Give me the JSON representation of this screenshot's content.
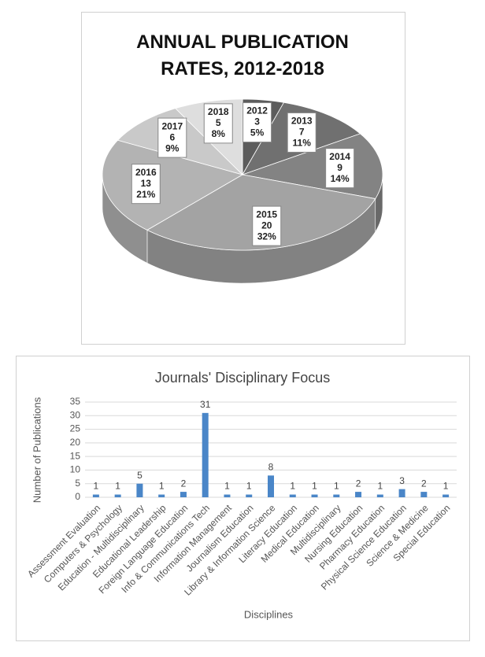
{
  "chart_data": [
    {
      "type": "pie",
      "title": "ANNUAL PUBLICATION RATES, 2012-2018",
      "categories": [
        "2012",
        "2013",
        "2014",
        "2015",
        "2016",
        "2017",
        "2018"
      ],
      "values": [
        3,
        7,
        9,
        20,
        13,
        6,
        5
      ],
      "percent_labels": [
        "5%",
        "11%",
        "14%",
        "32%",
        "21%",
        "9%",
        "8%"
      ],
      "colors": [
        "#5c5c5c",
        "#707070",
        "#838383",
        "#a3a3a3",
        "#b3b3b3",
        "#c9c9c9",
        "#dedede"
      ]
    },
    {
      "type": "bar",
      "title": "Journals' Disciplinary Focus",
      "x_label": "Disciplines",
      "y_label": "Number of Publications",
      "categories": [
        "Assessment Evaluation",
        "Computers & Psychology",
        "Education - Multidisciplinary",
        "Educational Leadership",
        "Foreign Language Education",
        "Info & Communications Tech",
        "Information Management",
        "Journalism Education",
        "Library & Information Science",
        "Literacy Education",
        "Medical Education",
        "Multidisciplinary",
        "Nursing Education",
        "Pharmacy Education",
        "Physical Science Education",
        "Science & Medicine",
        "Special Education"
      ],
      "values": [
        1,
        1,
        5,
        1,
        2,
        31,
        1,
        1,
        8,
        1,
        1,
        1,
        2,
        1,
        3,
        2,
        1
      ],
      "color": "#4a86c8",
      "ylim": [
        0,
        35
      ],
      "yticks": [
        0,
        5,
        10,
        15,
        20,
        25,
        30,
        35
      ],
      "grid": true
    }
  ]
}
